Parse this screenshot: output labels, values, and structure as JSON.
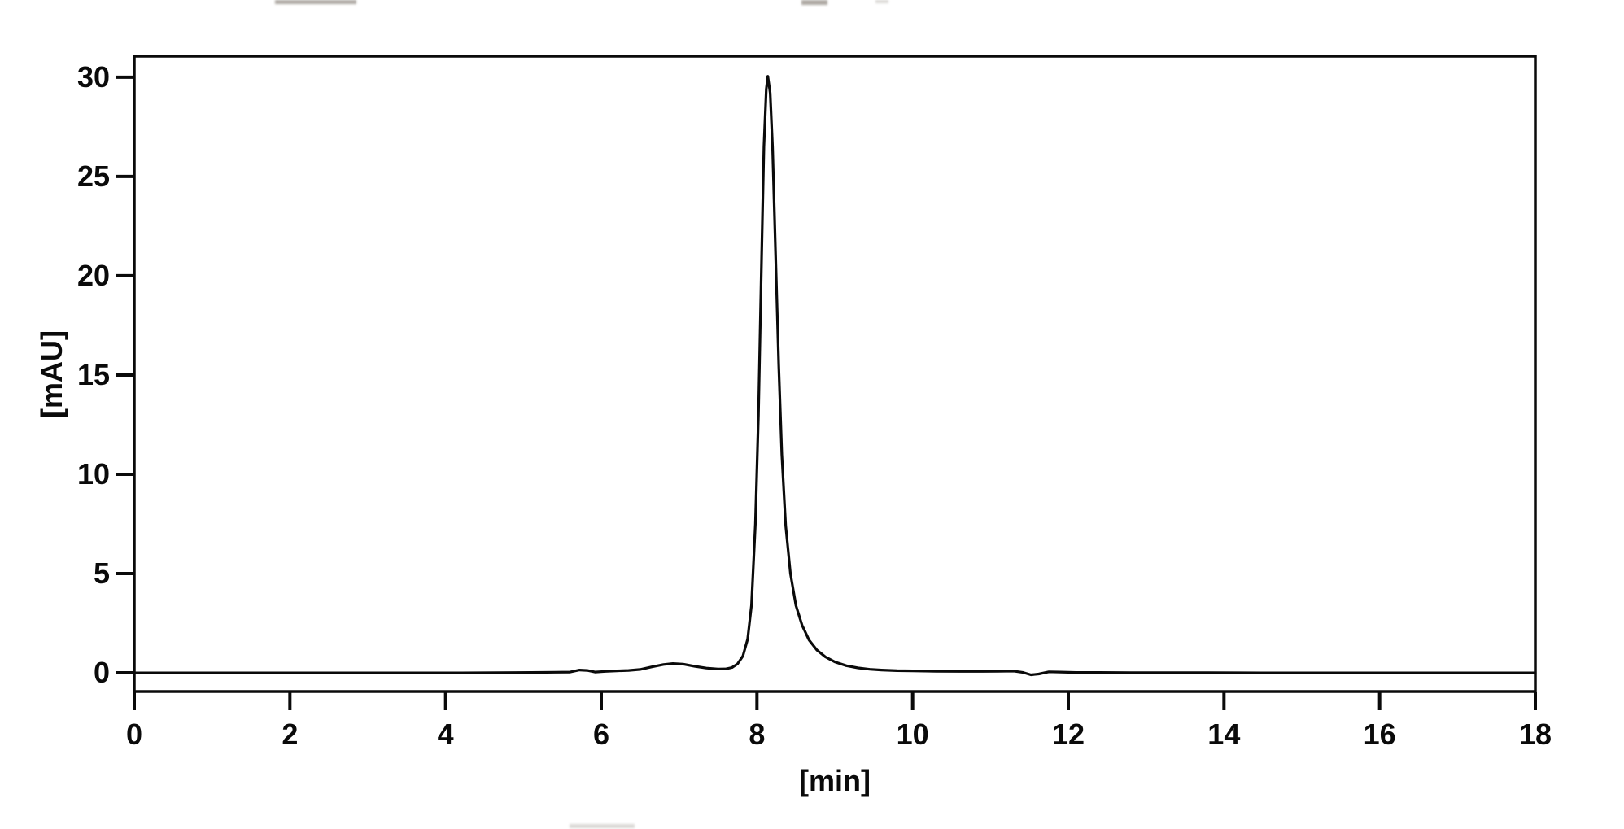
{
  "figure": {
    "background_color": "#ffffff",
    "axis_color": "#0a0a0a",
    "trace_color": "#0a0a0a"
  },
  "chart_data": {
    "type": "line",
    "title": "",
    "xlabel": "[min]",
    "ylabel": "[mAU]",
    "xlim": [
      0,
      18
    ],
    "ylim": [
      -0.94,
      31.06
    ],
    "x_ticks": [
      0,
      2,
      4,
      6,
      8,
      10,
      12,
      14,
      16,
      18
    ],
    "y_ticks": [
      0,
      5,
      10,
      15,
      20,
      25,
      30
    ],
    "grid": false,
    "legend_position": "none",
    "series": [
      {
        "name": "detector-signal",
        "color": "#0a0a0a",
        "points": [
          [
            0,
            0
          ],
          [
            0.6,
            0
          ],
          [
            1.2,
            0
          ],
          [
            1.8,
            0
          ],
          [
            2.4,
            0
          ],
          [
            3.0,
            0
          ],
          [
            3.6,
            0
          ],
          [
            4.2,
            0
          ],
          [
            4.7,
            0.01
          ],
          [
            5.1,
            0.02
          ],
          [
            5.4,
            0.03
          ],
          [
            5.6,
            0.04
          ],
          [
            5.72,
            0.14
          ],
          [
            5.82,
            0.12
          ],
          [
            5.92,
            0.04
          ],
          [
            6.05,
            0.07
          ],
          [
            6.2,
            0.1
          ],
          [
            6.35,
            0.12
          ],
          [
            6.5,
            0.17
          ],
          [
            6.65,
            0.3
          ],
          [
            6.8,
            0.42
          ],
          [
            6.92,
            0.47
          ],
          [
            7.05,
            0.44
          ],
          [
            7.2,
            0.33
          ],
          [
            7.35,
            0.24
          ],
          [
            7.5,
            0.19
          ],
          [
            7.6,
            0.2
          ],
          [
            7.68,
            0.27
          ],
          [
            7.75,
            0.45
          ],
          [
            7.82,
            0.85
          ],
          [
            7.88,
            1.7
          ],
          [
            7.93,
            3.4
          ],
          [
            7.98,
            7.5
          ],
          [
            8.02,
            13
          ],
          [
            8.06,
            21
          ],
          [
            8.09,
            26.5
          ],
          [
            8.12,
            29.4
          ],
          [
            8.14,
            30.05
          ],
          [
            8.17,
            29.2
          ],
          [
            8.2,
            26.5
          ],
          [
            8.24,
            21
          ],
          [
            8.28,
            15.5
          ],
          [
            8.32,
            11
          ],
          [
            8.37,
            7.4
          ],
          [
            8.43,
            5.0
          ],
          [
            8.5,
            3.4
          ],
          [
            8.58,
            2.4
          ],
          [
            8.67,
            1.65
          ],
          [
            8.77,
            1.15
          ],
          [
            8.88,
            0.8
          ],
          [
            9.0,
            0.55
          ],
          [
            9.15,
            0.36
          ],
          [
            9.3,
            0.25
          ],
          [
            9.45,
            0.18
          ],
          [
            9.6,
            0.14
          ],
          [
            9.8,
            0.11
          ],
          [
            10.0,
            0.1
          ],
          [
            10.3,
            0.08
          ],
          [
            10.6,
            0.07
          ],
          [
            10.9,
            0.07
          ],
          [
            11.1,
            0.08
          ],
          [
            11.3,
            0.09
          ],
          [
            11.42,
            0.02
          ],
          [
            11.52,
            -0.1
          ],
          [
            11.62,
            -0.06
          ],
          [
            11.75,
            0.05
          ],
          [
            11.9,
            0.04
          ],
          [
            12.1,
            0.02
          ],
          [
            12.4,
            0.02
          ],
          [
            12.8,
            0.01
          ],
          [
            13.2,
            0.01
          ],
          [
            13.8,
            0.01
          ],
          [
            14.5,
            0
          ],
          [
            15.5,
            0
          ],
          [
            16.5,
            0
          ],
          [
            17.2,
            0
          ],
          [
            18,
            0
          ]
        ]
      }
    ]
  }
}
